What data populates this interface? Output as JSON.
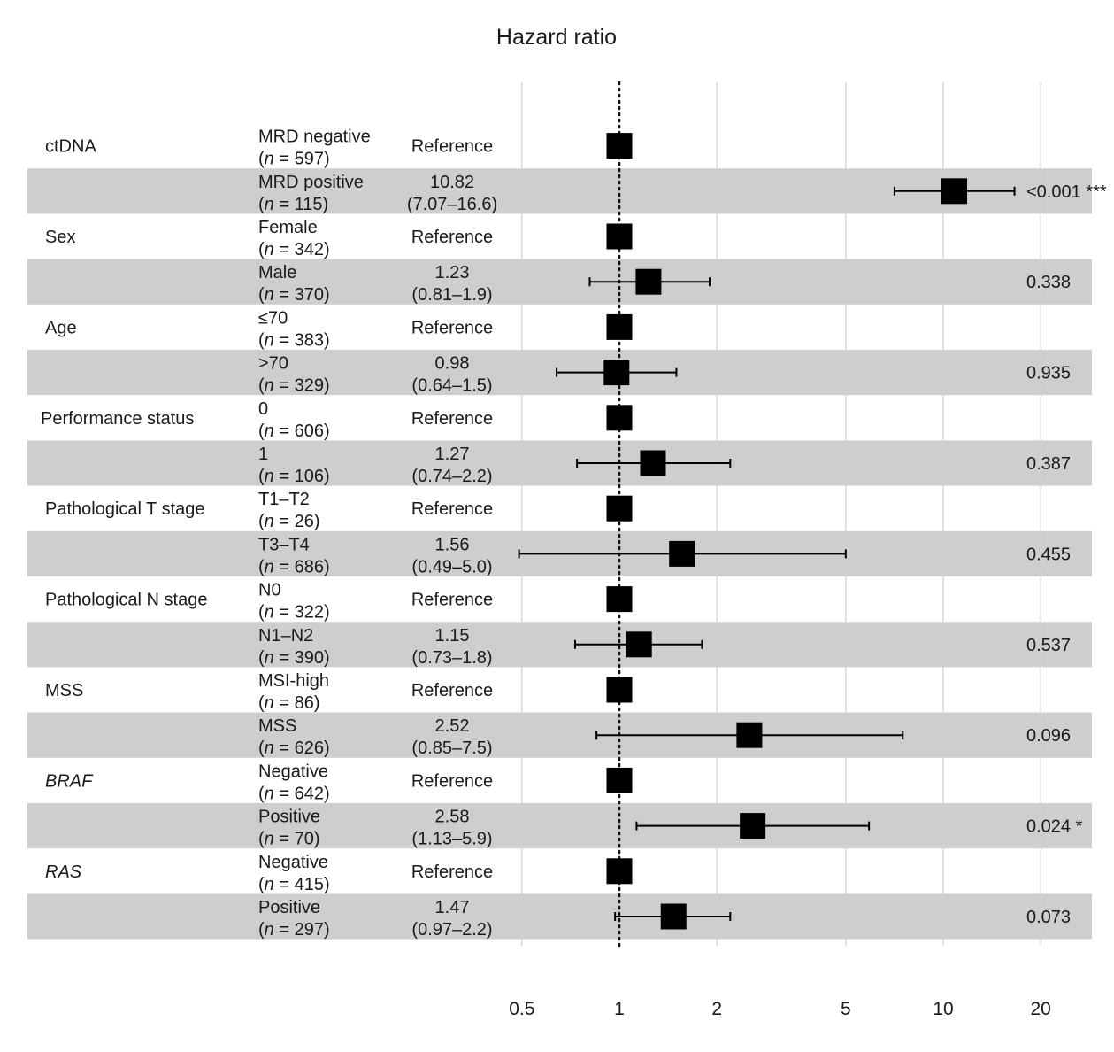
{
  "chart_data": {
    "type": "forest",
    "title": "Hazard ratio",
    "xscale": "log",
    "xlim": [
      0.5,
      20
    ],
    "x_ticks": [
      "0.5",
      "1",
      "2",
      "5",
      "10",
      "20"
    ],
    "x_tick_values": [
      0.5,
      1,
      2,
      5,
      10,
      20
    ],
    "reference_line": 1,
    "grid": "vertical",
    "rows": [
      {
        "variable": "ctDNA",
        "group": "MRD negative",
        "n": "597",
        "hr_label": "Reference",
        "ci_label": "",
        "hr": 1,
        "lo": null,
        "hi": null,
        "p": "",
        "shaded": false
      },
      {
        "variable": "",
        "group": "MRD positive",
        "n": "115",
        "hr_label": "10.82",
        "ci_label": "(7.07–16.6)",
        "hr": 10.82,
        "lo": 7.07,
        "hi": 16.6,
        "p": "<0.001 ***",
        "shaded": true
      },
      {
        "variable": "Sex",
        "group": "Female",
        "n": "342",
        "hr_label": "Reference",
        "ci_label": "",
        "hr": 1,
        "lo": null,
        "hi": null,
        "p": "",
        "shaded": false
      },
      {
        "variable": "",
        "group": "Male",
        "n": "370",
        "hr_label": "1.23",
        "ci_label": "(0.81–1.9)",
        "hr": 1.23,
        "lo": 0.81,
        "hi": 1.9,
        "p": "0.338",
        "shaded": true
      },
      {
        "variable": "Age",
        "group": "≤70",
        "n": "383",
        "hr_label": "Reference",
        "ci_label": "",
        "hr": 1,
        "lo": null,
        "hi": null,
        "p": "",
        "shaded": false
      },
      {
        "variable": "",
        "group": ">70",
        "n": "329",
        "hr_label": "0.98",
        "ci_label": "(0.64–1.5)",
        "hr": 0.98,
        "lo": 0.64,
        "hi": 1.5,
        "p": "0.935",
        "shaded": true
      },
      {
        "variable": "Performance status",
        "group": "0",
        "n": "606",
        "hr_label": "Reference",
        "ci_label": "",
        "hr": 1,
        "lo": null,
        "hi": null,
        "p": "",
        "shaded": false
      },
      {
        "variable": "",
        "group": "1",
        "n": "106",
        "hr_label": "1.27",
        "ci_label": "(0.74–2.2)",
        "hr": 1.27,
        "lo": 0.74,
        "hi": 2.2,
        "p": "0.387",
        "shaded": true
      },
      {
        "variable": "Pathological T stage",
        "group": "T1–T2",
        "n": "26",
        "hr_label": "Reference",
        "ci_label": "",
        "hr": 1,
        "lo": null,
        "hi": null,
        "p": "",
        "shaded": false
      },
      {
        "variable": "",
        "group": "T3–T4",
        "n": "686",
        "hr_label": "1.56",
        "ci_label": "(0.49–5.0)",
        "hr": 1.56,
        "lo": 0.49,
        "hi": 5.0,
        "p": "0.455",
        "shaded": true
      },
      {
        "variable": "Pathological N stage",
        "group": "N0",
        "n": "322",
        "hr_label": "Reference",
        "ci_label": "",
        "hr": 1,
        "lo": null,
        "hi": null,
        "p": "",
        "shaded": false
      },
      {
        "variable": "",
        "group": "N1–N2",
        "n": "390",
        "hr_label": "1.15",
        "ci_label": "(0.73–1.8)",
        "hr": 1.15,
        "lo": 0.73,
        "hi": 1.8,
        "p": "0.537",
        "shaded": true
      },
      {
        "variable": "MSS",
        "group": "MSI-high",
        "n": "86",
        "hr_label": "Reference",
        "ci_label": "",
        "hr": 1,
        "lo": null,
        "hi": null,
        "p": "",
        "shaded": false
      },
      {
        "variable": "",
        "group": "MSS",
        "n": "626",
        "hr_label": "2.52",
        "ci_label": "(0.85–7.5)",
        "hr": 2.52,
        "lo": 0.85,
        "hi": 7.5,
        "p": "0.096",
        "shaded": true
      },
      {
        "variable": "BRAF",
        "variable_italic": true,
        "group": "Negative",
        "n": "642",
        "hr_label": "Reference",
        "ci_label": "",
        "hr": 1,
        "lo": null,
        "hi": null,
        "p": "",
        "shaded": false
      },
      {
        "variable": "",
        "group": "Positive",
        "n": "70",
        "hr_label": "2.58",
        "ci_label": "(1.13–5.9)",
        "hr": 2.58,
        "lo": 1.13,
        "hi": 5.9,
        "p": "0.024 *",
        "shaded": true
      },
      {
        "variable": "RAS",
        "variable_italic": true,
        "group": "Negative",
        "n": "415",
        "hr_label": "Reference",
        "ci_label": "",
        "hr": 1,
        "lo": null,
        "hi": null,
        "p": "",
        "shaded": false
      },
      {
        "variable": "",
        "group": "Positive",
        "n": "297",
        "hr_label": "1.47",
        "ci_label": "(0.97–2.2)",
        "hr": 1.47,
        "lo": 0.97,
        "hi": 2.2,
        "p": "0.073",
        "shaded": true
      }
    ]
  }
}
